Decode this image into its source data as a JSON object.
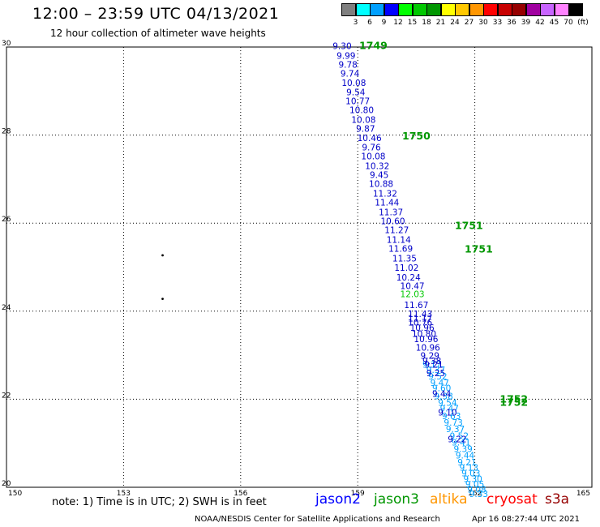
{
  "header": {
    "title": "12:00 – 23:59 UTC 04/13/2021",
    "subtitle": "12 hour collection of altimeter wave heights"
  },
  "legend": {
    "unit": "(ft)",
    "colors": [
      "#7f7f7f",
      "#00ffff",
      "#00a0ff",
      "#0000ff",
      "#00ff00",
      "#00c800",
      "#009600",
      "#ffff00",
      "#ffc800",
      "#ff9600",
      "#ff0000",
      "#c80000",
      "#960000",
      "#a000a0",
      "#c864ff",
      "#ff82ff",
      "#000000"
    ],
    "ticks": [
      "3",
      "6",
      "9",
      "12",
      "15",
      "18",
      "21",
      "24",
      "27",
      "30",
      "33",
      "36",
      "39",
      "42",
      "45",
      "70"
    ]
  },
  "footer": {
    "note": "note:  1) Time is in UTC; 2) SWH is in feet",
    "satellites": [
      {
        "name": "jason2",
        "color": "#0000ff"
      },
      {
        "name": "jason3",
        "color": "#009600"
      },
      {
        "name": "altika",
        "color": "#ff9600"
      },
      {
        "name": "cryosat",
        "color": "#ff0000"
      },
      {
        "name": "s3a",
        "color": "#960000"
      }
    ],
    "credit": "NOAA/NESDIS Center for Satellite Applications and Research",
    "timestamp": "Apr 16 08:27:44 UTC 2021"
  },
  "chart_data": {
    "type": "scatter",
    "xlim": [
      150,
      165
    ],
    "ylim": [
      20,
      30
    ],
    "x_ticks": [
      "150",
      "153",
      "156",
      "159",
      "162",
      "165"
    ],
    "y_ticks": [
      "20",
      "22",
      "24",
      "26",
      "28",
      "30"
    ],
    "grid": true,
    "label_color_dark": "#0000c8",
    "label_color_light": "#00a0ff",
    "label_color_mid": "#00c8c8",
    "label_color_green": "#00c800",
    "time_color": "#009600",
    "blue_track": [
      {
        "x": 158.6,
        "y": 29.95,
        "v": "9.30"
      },
      {
        "x": 158.7,
        "y": 29.73,
        "v": "9.99"
      },
      {
        "x": 158.75,
        "y": 29.53,
        "v": "9.78"
      },
      {
        "x": 158.8,
        "y": 29.33,
        "v": "9.74"
      },
      {
        "x": 158.9,
        "y": 29.12,
        "v": "10.08"
      },
      {
        "x": 158.95,
        "y": 28.9,
        "v": "9.54"
      },
      {
        "x": 159.0,
        "y": 28.7,
        "v": "10.77"
      },
      {
        "x": 159.1,
        "y": 28.5,
        "v": "10.80"
      },
      {
        "x": 159.15,
        "y": 28.28,
        "v": "10.08"
      },
      {
        "x": 159.2,
        "y": 28.08,
        "v": "9.87"
      },
      {
        "x": 159.3,
        "y": 27.86,
        "v": "10.46"
      },
      {
        "x": 159.35,
        "y": 27.65,
        "v": "9.76"
      },
      {
        "x": 159.4,
        "y": 27.45,
        "v": "10.08"
      },
      {
        "x": 159.5,
        "y": 27.23,
        "v": "10.32"
      },
      {
        "x": 159.55,
        "y": 27.03,
        "v": "9.45"
      },
      {
        "x": 159.6,
        "y": 26.82,
        "v": "10.88"
      },
      {
        "x": 159.7,
        "y": 26.6,
        "v": "11.32"
      },
      {
        "x": 159.75,
        "y": 26.4,
        "v": "11.44"
      },
      {
        "x": 159.85,
        "y": 26.18,
        "v": "11.37"
      },
      {
        "x": 159.9,
        "y": 25.98,
        "v": "10.60"
      },
      {
        "x": 160.0,
        "y": 25.77,
        "v": "11.27"
      },
      {
        "x": 160.05,
        "y": 25.55,
        "v": "11.14"
      },
      {
        "x": 160.1,
        "y": 25.35,
        "v": "11.69"
      },
      {
        "x": 160.2,
        "y": 25.13,
        "v": "11.35"
      },
      {
        "x": 160.25,
        "y": 24.92,
        "v": "11.02"
      },
      {
        "x": 160.3,
        "y": 24.7,
        "v": "10.24"
      },
      {
        "x": 160.4,
        "y": 24.5,
        "v": "10.47"
      },
      {
        "x": 160.5,
        "y": 24.07,
        "v": "11.67"
      },
      {
        "x": 160.6,
        "y": 23.87,
        "v": "11.43"
      },
      {
        "x": 160.6,
        "y": 23.77,
        "v": "11.17"
      },
      {
        "x": 160.6,
        "y": 23.67,
        "v": "10.76"
      },
      {
        "x": 160.65,
        "y": 23.55,
        "v": "10.96"
      },
      {
        "x": 160.7,
        "y": 23.42,
        "v": "10.80"
      },
      {
        "x": 160.75,
        "y": 23.3,
        "v": "10.96"
      },
      {
        "x": 160.8,
        "y": 23.1,
        "v": "10.96"
      },
      {
        "x": 160.85,
        "y": 22.92,
        "v": "9.29"
      },
      {
        "x": 160.9,
        "y": 22.8,
        "v": "9.38"
      },
      {
        "x": 160.95,
        "y": 22.72,
        "v": "9.21"
      },
      {
        "x": 161.0,
        "y": 22.52,
        "v": "9.25"
      },
      {
        "x": 161.15,
        "y": 22.05,
        "v": "9.44"
      },
      {
        "x": 161.3,
        "y": 21.63,
        "v": "9.10"
      },
      {
        "x": 161.55,
        "y": 21.02,
        "v": "9.22"
      }
    ],
    "green_points": [
      {
        "x": 160.4,
        "y": 24.32,
        "v": "12.03"
      }
    ],
    "cyan_track": [
      {
        "x": 160.9,
        "y": 22.72,
        "v": "9.17"
      },
      {
        "x": 161.0,
        "y": 22.6,
        "v": "9.37"
      },
      {
        "x": 161.05,
        "y": 22.45,
        "v": "9.52"
      },
      {
        "x": 161.1,
        "y": 22.3,
        "v": "9.47"
      },
      {
        "x": 161.15,
        "y": 22.18,
        "v": "9.60"
      },
      {
        "x": 161.2,
        "y": 22.0,
        "v": "9.38"
      },
      {
        "x": 161.3,
        "y": 21.85,
        "v": "9.54"
      },
      {
        "x": 161.35,
        "y": 21.72,
        "v": "9.47"
      },
      {
        "x": 161.4,
        "y": 21.55,
        "v": "9.63"
      },
      {
        "x": 161.45,
        "y": 21.4,
        "v": "9.73"
      },
      {
        "x": 161.5,
        "y": 21.25,
        "v": "9.37"
      },
      {
        "x": 161.6,
        "y": 21.1,
        "v": "9.52"
      },
      {
        "x": 161.65,
        "y": 20.95,
        "v": "9.41"
      },
      {
        "x": 161.7,
        "y": 20.8,
        "v": "9.39"
      },
      {
        "x": 161.75,
        "y": 20.65,
        "v": "9.44"
      },
      {
        "x": 161.8,
        "y": 20.5,
        "v": "9.21"
      },
      {
        "x": 161.85,
        "y": 20.38,
        "v": "9.13"
      },
      {
        "x": 161.9,
        "y": 20.25,
        "v": "9.03"
      },
      {
        "x": 161.95,
        "y": 20.12,
        "v": "9.30"
      },
      {
        "x": 162.0,
        "y": 20.0,
        "v": "9.05"
      },
      {
        "x": 162.05,
        "y": 19.88,
        "v": "9.08"
      },
      {
        "x": 162.1,
        "y": 19.78,
        "v": "9.33"
      }
    ],
    "time_labels": [
      {
        "x": 159.4,
        "y": 29.95,
        "v": "1749"
      },
      {
        "x": 160.5,
        "y": 27.9,
        "v": "1750"
      },
      {
        "x": 161.85,
        "y": 25.87,
        "v": "1751"
      },
      {
        "x": 162.1,
        "y": 25.33,
        "v": "1751"
      },
      {
        "x": 163.0,
        "y": 21.92,
        "v": "1752"
      },
      {
        "x": 163.0,
        "y": 21.85,
        "v": "1752"
      }
    ],
    "dots": [
      {
        "x": 154.0,
        "y": 25.27
      },
      {
        "x": 154.0,
        "y": 24.28
      }
    ]
  }
}
